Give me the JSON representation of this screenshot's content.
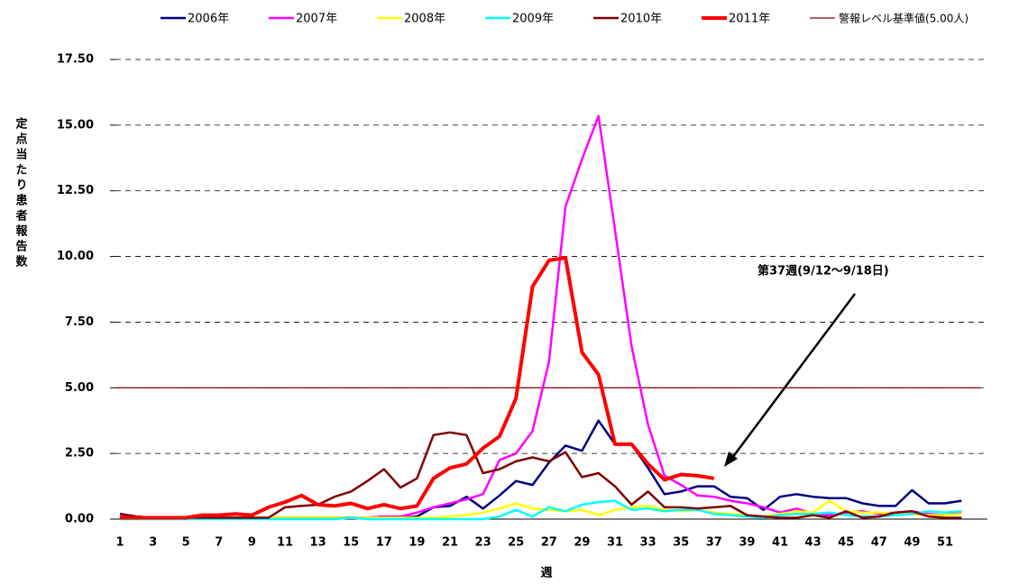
{
  "chart_data": {
    "type": "line",
    "y_label": "定点当たり患者報告数",
    "x_label": "週",
    "categories": [
      1,
      null,
      3,
      null,
      5,
      null,
      7,
      null,
      9,
      null,
      11,
      null,
      13,
      null,
      15,
      null,
      17,
      null,
      19,
      null,
      21,
      null,
      23,
      null,
      25,
      null,
      27,
      null,
      29,
      null,
      31,
      null,
      33,
      null,
      35,
      null,
      37,
      null,
      39,
      null,
      41,
      null,
      43,
      null,
      45,
      null,
      47,
      null,
      49,
      null,
      51,
      null
    ],
    "ylim": [
      0,
      17.5
    ],
    "yticks": [
      {
        "value": 0,
        "label": "0.00"
      },
      {
        "value": 2.5,
        "label": "2.50"
      },
      {
        "value": 5,
        "label": "5.00"
      },
      {
        "value": 7.5,
        "label": "7.50"
      },
      {
        "value": 10,
        "label": "10.00"
      },
      {
        "value": 12.5,
        "label": "12.50"
      },
      {
        "value": 15,
        "label": "15.00"
      },
      {
        "value": 17.5,
        "label": "17.50"
      }
    ],
    "grid": true,
    "series": [
      {
        "name": "2006年",
        "color": "#000080",
        "line_width": 2.5,
        "values": [
          0.2,
          0.1,
          0.05,
          0.05,
          0.05,
          0.05,
          0.05,
          0.05,
          0.05,
          0.05,
          0.05,
          0.05,
          0.05,
          0.05,
          0.05,
          0.05,
          0.1,
          0.05,
          0.1,
          0.45,
          0.5,
          0.85,
          0.4,
          0.9,
          1.45,
          1.3,
          2.15,
          2.8,
          2.6,
          3.75,
          2.85,
          2.85,
          1.95,
          0.95,
          1.05,
          1.25,
          1.25,
          0.85,
          0.8,
          0.35,
          0.85,
          0.95,
          0.85,
          0.8,
          0.8,
          0.6,
          0.5,
          0.5,
          1.1,
          0.6,
          0.6,
          0.7
        ]
      },
      {
        "name": "2007年",
        "color": "#ff00ff",
        "line_width": 2.5,
        "values": [
          0.1,
          0.05,
          0.05,
          0.05,
          0.05,
          0.05,
          0.05,
          0.05,
          0.05,
          0.05,
          0.05,
          0.05,
          0.05,
          0.05,
          0.05,
          0.05,
          0.1,
          0.1,
          0.25,
          0.45,
          0.6,
          0.75,
          0.95,
          2.25,
          2.5,
          3.35,
          6.0,
          11.9,
          13.7,
          15.35,
          11.0,
          6.6,
          3.6,
          1.65,
          1.3,
          0.9,
          0.85,
          0.7,
          0.6,
          0.45,
          0.25,
          0.4,
          0.2,
          0.15,
          0.25,
          0.3,
          0.2,
          0.25,
          0.3,
          0.2,
          0.15,
          0.25
        ]
      },
      {
        "name": "2008年",
        "color": "#ffff00",
        "line_width": 2.5,
        "values": [
          0.05,
          0.05,
          0.05,
          0.05,
          0.05,
          0.05,
          0.05,
          0.05,
          0.05,
          0.05,
          0.05,
          0.05,
          0.05,
          0.05,
          0.05,
          0.05,
          0.05,
          0.05,
          0.05,
          0.05,
          0.1,
          0.15,
          0.25,
          0.4,
          0.6,
          0.4,
          0.35,
          0.3,
          0.35,
          0.15,
          0.35,
          0.45,
          0.5,
          0.35,
          0.3,
          0.35,
          0.25,
          0.2,
          0.15,
          0.1,
          0.2,
          0.3,
          0.25,
          0.7,
          0.3,
          0.25,
          0.25,
          0.2,
          0.2,
          0.15,
          0.15,
          0.2
        ]
      },
      {
        "name": "2009年",
        "color": "#00ffff",
        "line_width": 2.5,
        "values": [
          0.0,
          0.0,
          0.0,
          0.0,
          0.0,
          0.0,
          0.0,
          0.0,
          0.0,
          0.0,
          0.0,
          0.0,
          0.0,
          0.0,
          0.05,
          0.0,
          0.0,
          0.0,
          0.0,
          0.0,
          0.0,
          0.0,
          0.0,
          0.1,
          0.35,
          0.1,
          0.45,
          0.3,
          0.55,
          0.65,
          0.7,
          0.35,
          0.4,
          0.3,
          0.35,
          0.35,
          0.2,
          0.15,
          0.1,
          0.05,
          0.15,
          0.2,
          0.2,
          0.25,
          0.15,
          0.1,
          0.1,
          0.15,
          0.2,
          0.3,
          0.25,
          0.3
        ]
      },
      {
        "name": "2010年",
        "color": "#800000",
        "line_width": 2.5,
        "values": [
          0.2,
          0.1,
          0.05,
          0.05,
          0.05,
          0.05,
          0.05,
          0.05,
          0.05,
          0.05,
          0.45,
          0.5,
          0.55,
          0.85,
          1.05,
          1.45,
          1.9,
          1.2,
          1.55,
          3.2,
          3.3,
          3.2,
          1.75,
          1.9,
          2.2,
          2.35,
          2.2,
          2.55,
          1.6,
          1.75,
          1.25,
          0.55,
          1.05,
          0.45,
          0.45,
          0.4,
          0.45,
          0.5,
          0.15,
          0.1,
          0.05,
          0.05,
          0.15,
          0.05,
          0.3,
          0.05,
          0.1,
          0.25,
          0.3,
          0.1,
          0.05,
          0.05
        ]
      },
      {
        "name": "2011年",
        "color": "#ff0000",
        "line_width": 4,
        "values": [
          0.05,
          0.05,
          0.05,
          0.05,
          0.05,
          0.15,
          0.15,
          0.2,
          0.15,
          0.45,
          0.65,
          0.9,
          0.55,
          0.5,
          0.6,
          0.4,
          0.55,
          0.4,
          0.5,
          1.55,
          1.95,
          2.1,
          2.7,
          3.15,
          4.6,
          8.85,
          9.85,
          9.95,
          6.35,
          5.5,
          2.85,
          2.85,
          2.1,
          1.5,
          1.7,
          1.65,
          1.55,
          null,
          null,
          null,
          null,
          null,
          null,
          null,
          null,
          null,
          null,
          null,
          null,
          null,
          null,
          null
        ]
      }
    ],
    "reference_line": {
      "name": "警報レベル基準値(5.00人)",
      "value": 5,
      "color": "#800000"
    },
    "annotation": "第37週(9/12～9/18日)"
  }
}
